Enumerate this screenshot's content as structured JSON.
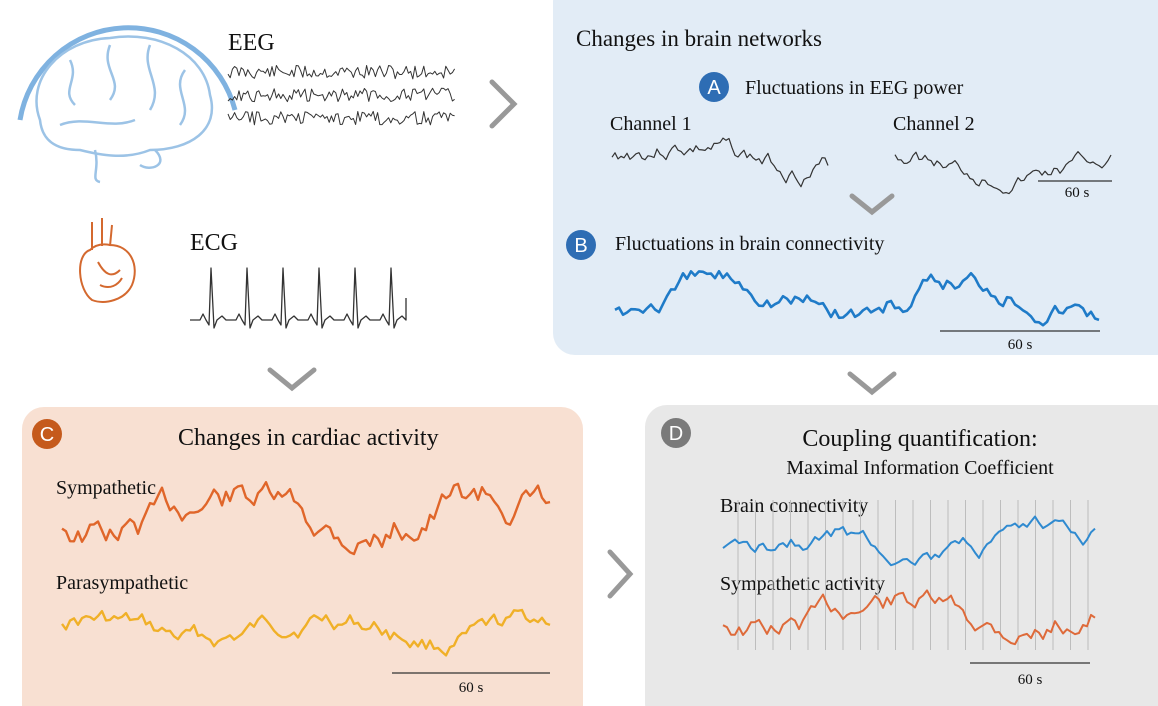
{
  "eeg": {
    "label": "EEG"
  },
  "ecg": {
    "label": "ECG"
  },
  "brain_networks": {
    "title": "Changes in brain networks",
    "a": {
      "badge": "A",
      "title": "Fluctuations in EEG power",
      "channels": [
        "Channel 1",
        "Channel 2"
      ],
      "scale": "60 s"
    },
    "b": {
      "badge": "B",
      "title": "Fluctuations in brain connectivity",
      "scale": "60 s"
    }
  },
  "cardiac": {
    "badge": "C",
    "title": "Changes in cardiac activity",
    "traces": [
      "Sympathetic",
      "Parasympathetic"
    ],
    "scale": "60 s"
  },
  "coupling": {
    "badge": "D",
    "title": "Coupling quantification:",
    "subtitle": "Maximal Information Coefficient",
    "traces": [
      "Brain connectivity",
      "Sympathetic activity"
    ],
    "scale": "60 s"
  }
}
